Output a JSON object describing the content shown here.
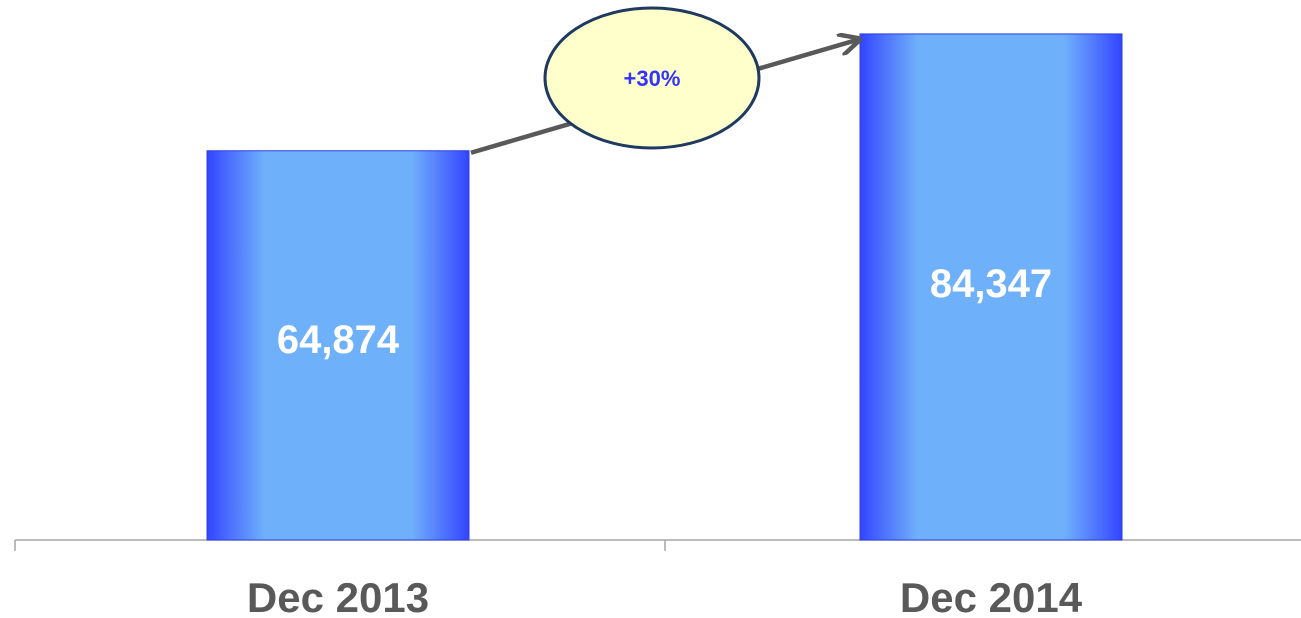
{
  "chart_data": {
    "type": "bar",
    "title": "",
    "xlabel": "",
    "ylabel": "",
    "categories": [
      "Dec 2013",
      "Dec 2014"
    ],
    "values": [
      64874,
      84347
    ],
    "value_labels": [
      "64,874",
      "84,347"
    ],
    "ylim": [
      0,
      90000
    ],
    "grid": false,
    "legend": "none",
    "annotation": {
      "text": "+30%",
      "from_category": "Dec 2013",
      "to_category": "Dec 2014"
    },
    "colors": {
      "bar_edge": "#3344ff",
      "bar_center": "#6fb0fb",
      "axis_line": "#a6a6a6",
      "category_text": "#595959",
      "value_text": "#ffffff",
      "callout_fill": "#ffffcc",
      "callout_stroke": "#1f3a60",
      "callout_text": "#3333ff",
      "arrow": "#595959"
    }
  }
}
